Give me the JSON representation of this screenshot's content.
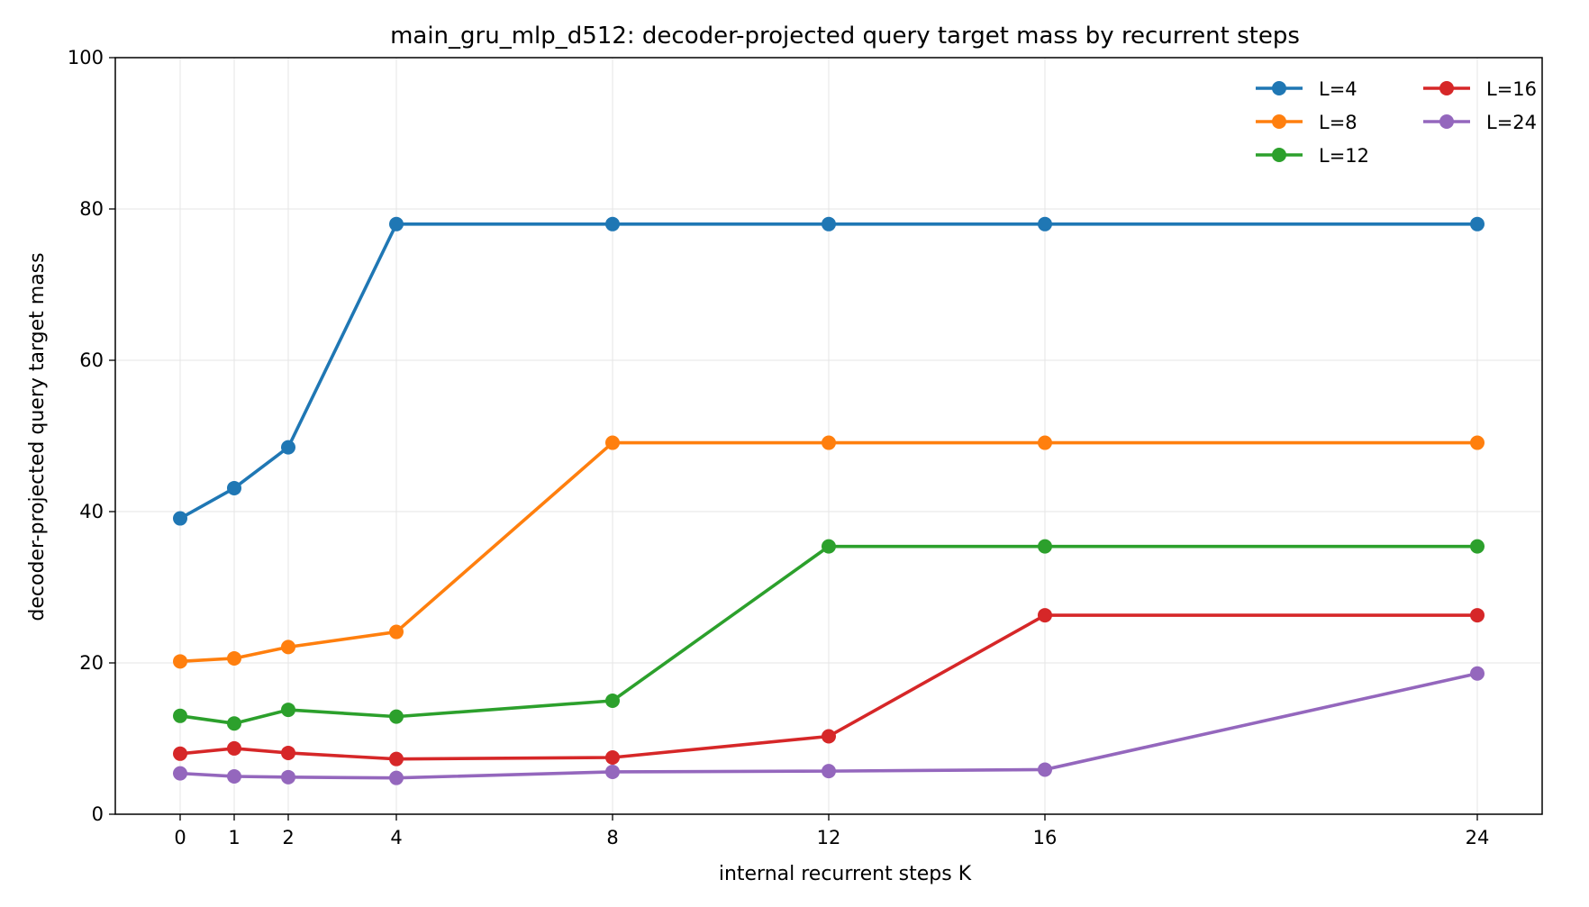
{
  "chart_data": {
    "type": "line",
    "title": "main_gru_mlp_d512: decoder-projected query target mass by recurrent steps",
    "xlabel": "internal recurrent steps K",
    "ylabel": "decoder-projected query target mass",
    "x": [
      0,
      1,
      2,
      4,
      8,
      12,
      16,
      24
    ],
    "x_tick_labels": [
      "0",
      "1",
      "2",
      "4",
      "8",
      "12",
      "16",
      "24"
    ],
    "y_tick_labels": [
      "0",
      "20",
      "40",
      "60",
      "80",
      "100"
    ],
    "xlim": [
      -1.2,
      25.2
    ],
    "ylim": [
      0,
      100
    ],
    "grid": true,
    "legend_position": "top-right",
    "series": [
      {
        "name": "L=4",
        "color": "#1f77b4",
        "values": [
          39.1,
          43.1,
          48.5,
          78.0,
          78.0,
          78.0,
          78.0,
          78.0
        ]
      },
      {
        "name": "L=8",
        "color": "#ff7f0e",
        "values": [
          20.2,
          20.6,
          22.1,
          24.1,
          49.1,
          49.1,
          49.1,
          49.1
        ]
      },
      {
        "name": "L=12",
        "color": "#2ca02c",
        "values": [
          13.0,
          12.0,
          13.8,
          12.9,
          15.0,
          35.4,
          35.4,
          35.4
        ]
      },
      {
        "name": "L=16",
        "color": "#d62728",
        "values": [
          8.0,
          8.7,
          8.1,
          7.3,
          7.5,
          10.3,
          26.3,
          26.3
        ]
      },
      {
        "name": "L=24",
        "color": "#9467bd",
        "values": [
          5.4,
          5.0,
          4.9,
          4.8,
          5.6,
          5.7,
          5.9,
          18.6
        ]
      }
    ]
  }
}
